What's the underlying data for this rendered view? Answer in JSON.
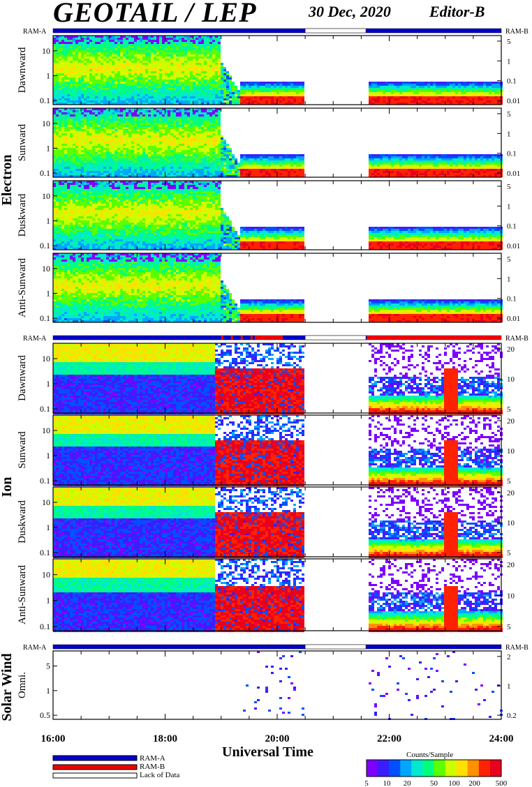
{
  "header": {
    "title": "GEOTAIL / LEP",
    "date": "30 Dec, 2020",
    "editor": "Editor-B"
  },
  "ram_labels": {
    "left": "RAM-A",
    "right": "RAM-B"
  },
  "colors": {
    "ram_a": "#0000cc",
    "ram_b": "#ee0000",
    "lack_of_data": "#ffffff",
    "background": "#ffffff",
    "axis": "#000000"
  },
  "sections": [
    {
      "name": "Electron"
    },
    {
      "name": "Ion"
    },
    {
      "name": "Solar Wind"
    }
  ],
  "x_axis": {
    "label": "Universal Time",
    "ticks": [
      "16:00",
      "18:00",
      "20:00",
      "22:00",
      "24:00"
    ]
  },
  "legend": {
    "items": [
      "RAM-A",
      "RAM-B",
      "Lack of Data"
    ]
  },
  "colorbar": {
    "title": "Counts/Sample",
    "ticks": [
      "5",
      "10",
      "20",
      "50",
      "100",
      "200",
      "500"
    ],
    "colors": [
      "#7d00ff",
      "#3b1dff",
      "#0050ff",
      "#00a6ff",
      "#00e9d0",
      "#00ff7f",
      "#5aff00",
      "#ccff00",
      "#ffe000",
      "#ff9000",
      "#ff2200",
      "#e8001e"
    ]
  },
  "chart_data": [
    {
      "type": "heatmap",
      "section": "Electron",
      "panel": "Dawnward",
      "xlim": [
        "16:00",
        "24:00"
      ],
      "ylim_left": [
        0.08,
        40
      ],
      "ylabel_left": "",
      "yticks_left": [
        "10",
        "1",
        "0.1"
      ],
      "yticks_right": [
        "5",
        "1",
        "0.1",
        "0.01"
      ],
      "data_gap": [
        "20:30",
        "21:35"
      ],
      "ram_bar": [
        {
          "from": "16:00",
          "to": "20:30",
          "mode": "RAM-A"
        },
        {
          "from": "20:30",
          "to": "21:35",
          "mode": "Lack of Data"
        },
        {
          "from": "21:35",
          "to": "24:00",
          "mode": "RAM-A"
        }
      ]
    },
    {
      "type": "heatmap",
      "section": "Electron",
      "panel": "Sunward",
      "xlim": [
        "16:00",
        "24:00"
      ],
      "yticks_left": [
        "10",
        "1",
        "0.1"
      ],
      "yticks_right": [
        "5",
        "1",
        "0.1",
        "0.01"
      ],
      "data_gap": [
        "20:30",
        "21:35"
      ]
    },
    {
      "type": "heatmap",
      "section": "Electron",
      "panel": "Duskward",
      "xlim": [
        "16:00",
        "24:00"
      ],
      "yticks_left": [
        "10",
        "1",
        "0.1"
      ],
      "yticks_right": [
        "5",
        "1",
        "0.1",
        "0.01"
      ],
      "data_gap": [
        "20:30",
        "21:35"
      ]
    },
    {
      "type": "heatmap",
      "section": "Electron",
      "panel": "Anti-Sunward",
      "xlim": [
        "16:00",
        "24:00"
      ],
      "yticks_left": [
        "10",
        "1",
        "0.1"
      ],
      "yticks_right": [
        "5",
        "1",
        "0.1",
        "0.01"
      ],
      "data_gap": [
        "20:30",
        "21:35"
      ]
    },
    {
      "type": "heatmap",
      "section": "Ion",
      "panel": "Dawnward",
      "xlim": [
        "16:00",
        "24:00"
      ],
      "yticks_left": [
        "10",
        "1",
        "0.1"
      ],
      "yticks_right": [
        "20",
        "10",
        "5"
      ],
      "data_gap": [
        "20:30",
        "21:35"
      ],
      "ram_bar": [
        {
          "from": "16:00",
          "to": "19:00",
          "mode": "RAM-A"
        },
        {
          "from": "19:00",
          "to": "20:30",
          "mode": "RAM-A/RAM-B"
        },
        {
          "from": "20:30",
          "to": "21:35",
          "mode": "Lack of Data"
        },
        {
          "from": "21:35",
          "to": "24:00",
          "mode": "RAM-B"
        }
      ]
    },
    {
      "type": "heatmap",
      "section": "Ion",
      "panel": "Sunward",
      "xlim": [
        "16:00",
        "24:00"
      ],
      "yticks_left": [
        "10",
        "1",
        "0.1"
      ],
      "yticks_right": [
        "20",
        "10",
        "5"
      ],
      "data_gap": [
        "20:30",
        "21:35"
      ]
    },
    {
      "type": "heatmap",
      "section": "Ion",
      "panel": "Duskward",
      "xlim": [
        "16:00",
        "24:00"
      ],
      "yticks_left": [
        "10",
        "1",
        "0.1"
      ],
      "yticks_right": [
        "20",
        "10",
        "5"
      ],
      "data_gap": [
        "20:30",
        "21:35"
      ]
    },
    {
      "type": "heatmap",
      "section": "Ion",
      "panel": "Anti-Sunward",
      "xlim": [
        "16:00",
        "24:00"
      ],
      "yticks_left": [
        "10",
        "1",
        "0.1"
      ],
      "yticks_right": [
        "20",
        "10",
        "5"
      ],
      "data_gap": [
        "20:30",
        "21:35"
      ]
    },
    {
      "type": "heatmap",
      "section": "Solar Wind",
      "panel": "Omni.",
      "xlim": [
        "16:00",
        "24:00"
      ],
      "yticks_left": [
        "5",
        "1",
        "0.5"
      ],
      "yticks_right": [
        "2",
        "1",
        "0.2"
      ],
      "data_gap": [
        "20:30",
        "21:35"
      ],
      "ram_bar": [
        {
          "from": "16:00",
          "to": "20:30",
          "mode": "RAM-A"
        },
        {
          "from": "20:30",
          "to": "21:35",
          "mode": "Lack of Data"
        },
        {
          "from": "21:35",
          "to": "24:00",
          "mode": "RAM-A"
        }
      ]
    }
  ]
}
